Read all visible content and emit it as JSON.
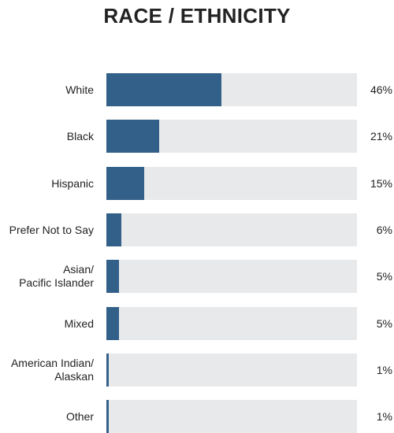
{
  "chart_data": {
    "type": "bar",
    "orientation": "horizontal",
    "title": "RACE / ETHNICITY",
    "xlim": [
      0,
      100
    ],
    "grid": false,
    "legend": "none",
    "categories": [
      "White",
      "Black",
      "Hispanic",
      "Prefer Not to Say",
      "Asian/\nPacific Islander",
      "Mixed",
      "American Indian/\nAlaskan",
      "Other"
    ],
    "values": [
      46,
      21,
      15,
      6,
      5,
      5,
      1,
      1
    ],
    "value_labels": [
      "46%",
      "21%",
      "15%",
      "6%",
      "5%",
      "5%",
      "1%",
      "1%"
    ],
    "colors": {
      "bar": "#336089",
      "track": "#e8e9eb",
      "text": "#222222"
    }
  }
}
